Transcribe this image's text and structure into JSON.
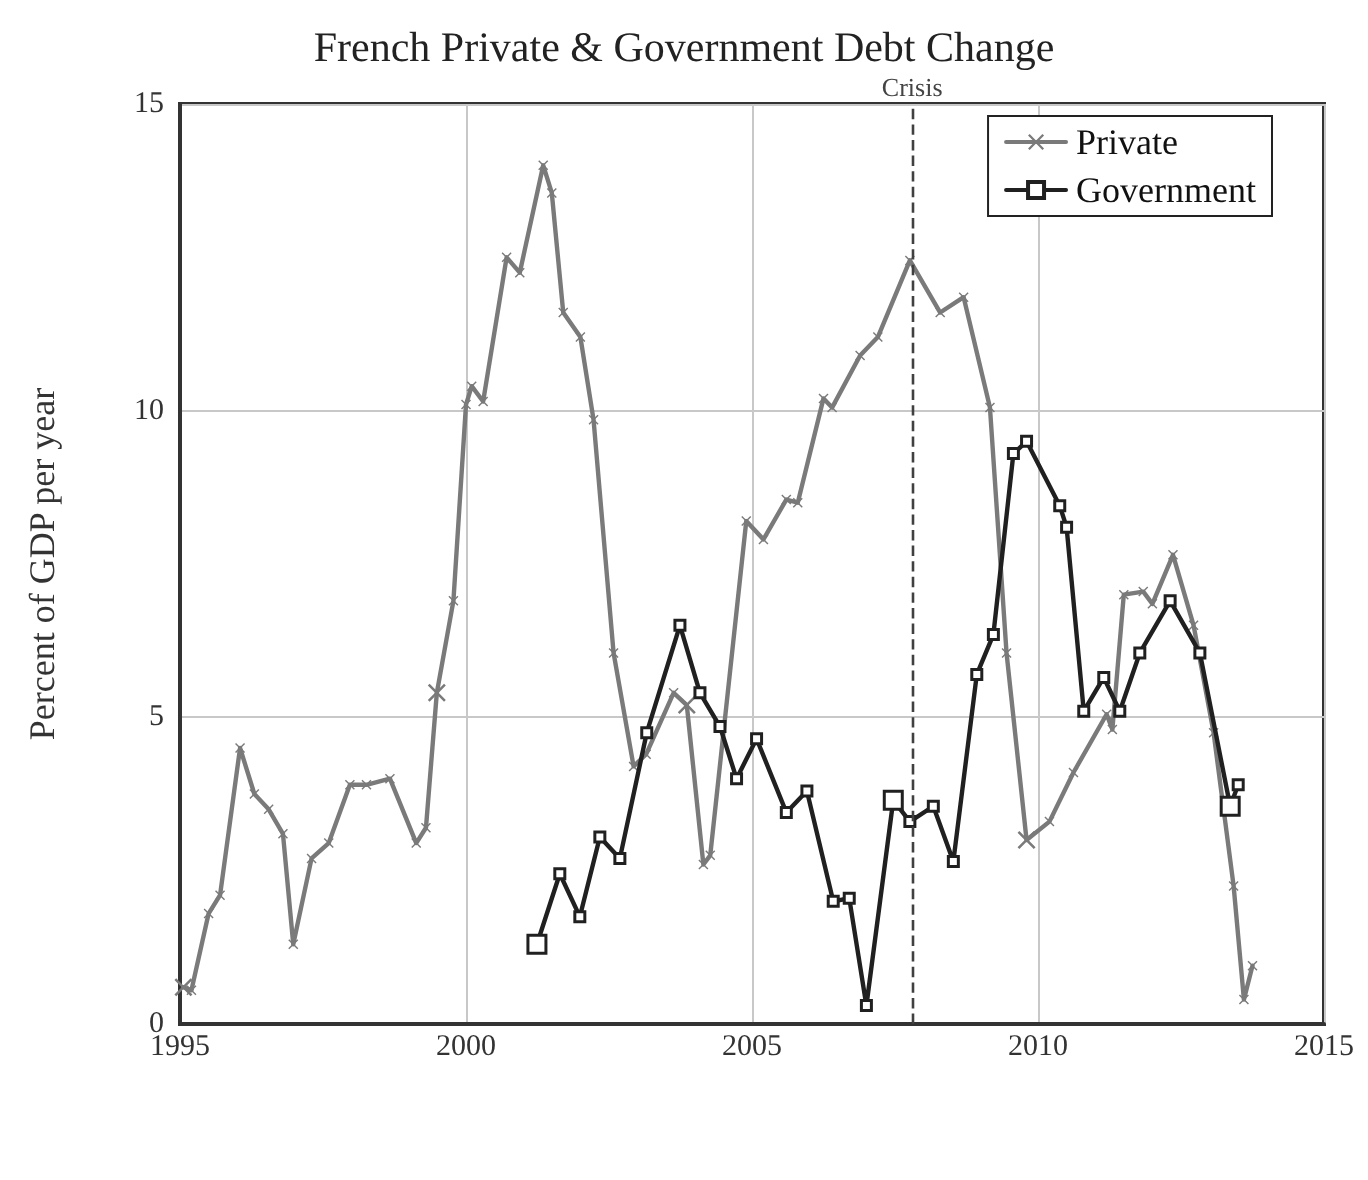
{
  "chart_data": {
    "type": "line",
    "title": "French Private & Government Debt Change",
    "ylabel": "Percent of GDP per year",
    "xlim": [
      1995,
      2015
    ],
    "xticks": [
      1995,
      2000,
      2005,
      2010,
      2015
    ],
    "ylim": [
      0,
      15
    ],
    "yticks": [
      0,
      5,
      10,
      15
    ],
    "grid": true,
    "legend": "top right",
    "ref_lines": [
      {
        "axis": "x",
        "value": 2007.8,
        "label": "Crisis",
        "line_style": "dashed",
        "color": "#404040"
      }
    ],
    "series": [
      {
        "name": "Private",
        "color": "#7a7a7a",
        "marker": "cross",
        "x": [
          1995.06,
          1995.2,
          1995.5,
          1995.7,
          1996.05,
          1996.3,
          1996.55,
          1996.8,
          1996.98,
          1997.3,
          1997.6,
          1997.97,
          1998.26,
          1998.67,
          1999.13,
          1999.3,
          1999.49,
          1999.78,
          2000.0,
          2000.1,
          2000.3,
          2000.71,
          2000.94,
          2001.35,
          2001.5,
          2001.7,
          2002.0,
          2002.23,
          2002.58,
          2002.93,
          2003.15,
          2003.63,
          2003.86,
          2004.15,
          2004.27,
          2004.9,
          2005.2,
          2005.6,
          2005.8,
          2006.25,
          2006.4,
          2006.89,
          2007.2,
          2007.76,
          2008.29,
          2008.7,
          2009.16,
          2009.45,
          2009.8,
          2010.2,
          2010.62,
          2011.2,
          2011.3,
          2011.5,
          2011.84,
          2012.0,
          2012.36,
          2012.72,
          2013.07,
          2013.42,
          2013.6,
          2013.75
        ],
        "values": [
          0.6,
          0.55,
          1.8,
          2.1,
          4.5,
          3.75,
          3.5,
          3.1,
          1.3,
          2.7,
          2.95,
          3.9,
          3.9,
          4.0,
          2.95,
          3.2,
          5.4,
          6.9,
          10.1,
          10.4,
          10.15,
          12.5,
          12.25,
          14.0,
          13.55,
          11.6,
          11.2,
          9.85,
          6.05,
          4.2,
          4.4,
          5.4,
          5.2,
          2.6,
          2.75,
          8.2,
          7.9,
          8.55,
          8.5,
          10.2,
          10.05,
          10.9,
          11.2,
          12.45,
          11.6,
          11.85,
          10.05,
          6.05,
          3.0,
          3.3,
          4.1,
          5.05,
          4.8,
          7.0,
          7.05,
          6.85,
          7.65,
          6.5,
          4.75,
          2.25,
          0.4,
          0.95
        ]
      },
      {
        "name": "Government",
        "color": "#202020",
        "marker": "square",
        "x": [
          2001.24,
          2001.64,
          2001.99,
          2002.34,
          2002.69,
          2003.16,
          2003.74,
          2004.09,
          2004.44,
          2004.73,
          2005.08,
          2005.6,
          2005.96,
          2006.42,
          2006.7,
          2007.0,
          2007.47,
          2007.76,
          2008.17,
          2008.52,
          2008.93,
          2009.22,
          2009.57,
          2009.8,
          2010.38,
          2010.5,
          2010.8,
          2011.15,
          2011.43,
          2011.78,
          2012.31,
          2012.83,
          2013.36,
          2013.5
        ],
        "values": [
          1.3,
          2.45,
          1.75,
          3.05,
          2.7,
          4.75,
          6.5,
          5.4,
          4.85,
          4.0,
          4.65,
          3.45,
          3.8,
          2.0,
          2.05,
          0.3,
          3.65,
          3.3,
          3.55,
          2.65,
          5.7,
          6.35,
          9.3,
          9.5,
          8.45,
          8.1,
          5.1,
          5.65,
          5.1,
          6.05,
          6.9,
          6.05,
          3.55,
          3.9
        ]
      }
    ]
  }
}
